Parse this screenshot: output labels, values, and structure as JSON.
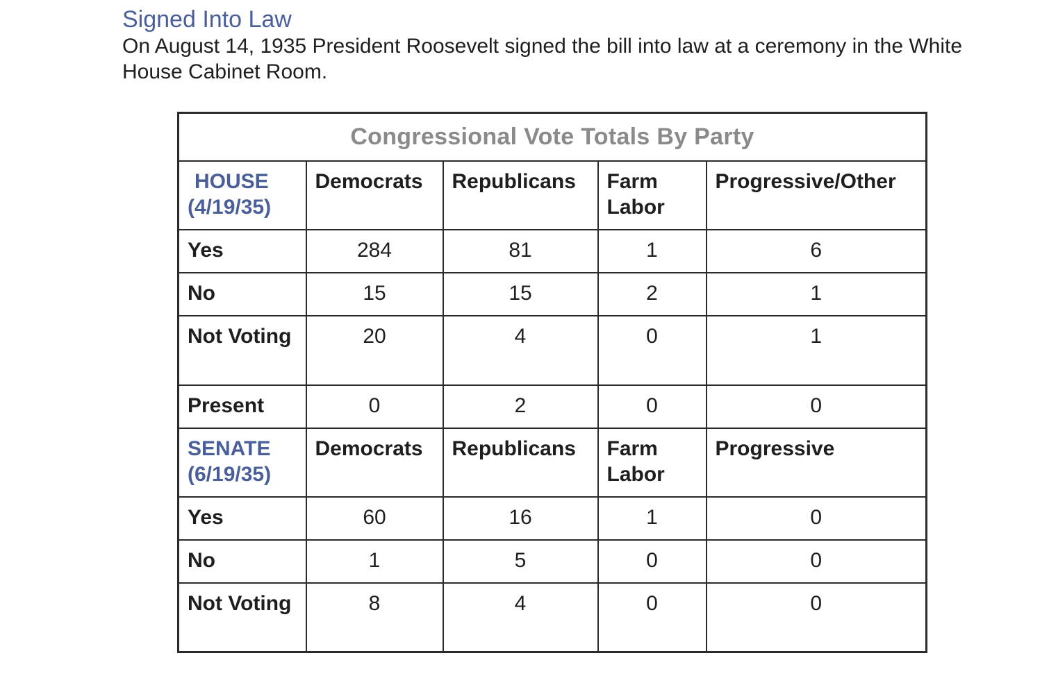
{
  "document": {
    "heading": "Signed Into Law",
    "intro": "On August 14, 1935 President Roosevelt signed the bill into law at a ceremony in the White House Cabinet Room."
  },
  "table": {
    "caption": "Congressional Vote Totals By Party",
    "house": {
      "label_line1": "HOUSE",
      "label_line2": "(4/19/35)",
      "columns": [
        "Democrats",
        "Republicans",
        "Farm Labor",
        "Progressive/Other"
      ],
      "rows": [
        {
          "label": "Yes",
          "values": [
            "284",
            "81",
            "1",
            "6"
          ]
        },
        {
          "label": "No",
          "values": [
            "15",
            "15",
            "2",
            "1"
          ]
        },
        {
          "label": "Not Voting",
          "values": [
            "20",
            "4",
            "0",
            "1"
          ]
        },
        {
          "label": "Present",
          "values": [
            "0",
            "2",
            "0",
            "0"
          ]
        }
      ]
    },
    "senate": {
      "label_line1": "SENATE",
      "label_line2": "(6/19/35)",
      "columns": [
        "Democrats",
        "Republicans",
        "Farm Labor",
        "Progressive"
      ],
      "rows": [
        {
          "label": "Yes",
          "values": [
            "60",
            "16",
            "1",
            "0"
          ]
        },
        {
          "label": "No",
          "values": [
            "1",
            "5",
            "0",
            "0"
          ]
        },
        {
          "label": "Not Voting",
          "values": [
            "8",
            "4",
            "0",
            "0"
          ]
        }
      ]
    }
  },
  "colors": {
    "heading": "#4a5f9a",
    "caption": "#8a8a8a",
    "text": "#1e1e1e",
    "border": "#2a2a2a"
  }
}
